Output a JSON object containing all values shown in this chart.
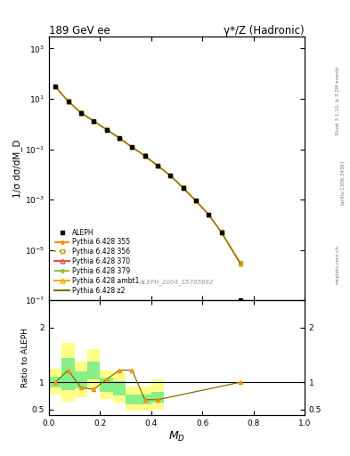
{
  "title_left": "189 GeV ee",
  "title_right": "γ*/Z (Hadronic)",
  "xlabel": "M_D",
  "ylabel_main": "1/σ dσ/dM_D",
  "ylabel_ratio": "Ratio to ALEPH",
  "watermark": "ALEPH_2004_S5765862",
  "rivet_text": "Rivet 3.1.10, ≥ 3.2M events",
  "arxiv_text": "[arXiv:1306.3436]",
  "mcplots_text": "mcplots.cern.ch",
  "data_x": [
    0.025,
    0.075,
    0.125,
    0.175,
    0.225,
    0.275,
    0.325,
    0.375,
    0.425,
    0.475,
    0.525,
    0.575,
    0.625,
    0.675,
    0.75
  ],
  "data_y": [
    30.0,
    8.0,
    2.8,
    1.3,
    0.6,
    0.28,
    0.12,
    0.055,
    0.022,
    0.009,
    0.003,
    0.0009,
    0.00025,
    5e-05,
    1e-07
  ],
  "mc_x": [
    0.025,
    0.075,
    0.125,
    0.175,
    0.225,
    0.275,
    0.325,
    0.375,
    0.425,
    0.475,
    0.525,
    0.575,
    0.625,
    0.675,
    0.75
  ],
  "mc355_y": [
    30.5,
    8.1,
    2.85,
    1.31,
    0.61,
    0.285,
    0.122,
    0.056,
    0.0225,
    0.0092,
    0.003,
    0.00091,
    0.000255,
    5.1e-05,
    3e-06
  ],
  "mc356_y": [
    30.6,
    8.15,
    2.86,
    1.315,
    0.612,
    0.287,
    0.123,
    0.057,
    0.0228,
    0.0093,
    0.0031,
    0.00092,
    0.000256,
    5.2e-05,
    3.1e-06
  ],
  "mc370_y": [
    30.3,
    8.05,
    2.82,
    1.305,
    0.605,
    0.282,
    0.121,
    0.055,
    0.0222,
    0.009,
    0.0029,
    0.00089,
    0.000252,
    5e-05,
    2.8e-06
  ],
  "mc379_y": [
    30.4,
    8.08,
    2.83,
    1.308,
    0.608,
    0.283,
    0.1215,
    0.0555,
    0.02225,
    0.00905,
    0.00295,
    0.000895,
    0.000253,
    5.05e-05,
    2.85e-06
  ],
  "mc_ambt1_y": [
    30.2,
    8.03,
    2.81,
    1.302,
    0.603,
    0.281,
    0.1205,
    0.0548,
    0.022,
    0.00895,
    0.00288,
    0.000885,
    0.00025,
    4.95e-05,
    2.75e-06
  ],
  "mc_z2_y": [
    30.1,
    8.0,
    2.8,
    1.3,
    0.6,
    0.28,
    0.1198,
    0.0545,
    0.0219,
    0.0089,
    0.00285,
    0.00088,
    0.000248,
    4.9e-05,
    2.7e-06
  ],
  "ratio_x": [
    0.025,
    0.075,
    0.125,
    0.175,
    0.225,
    0.275,
    0.325,
    0.375,
    0.425,
    0.75
  ],
  "ratio_y": [
    1.0,
    1.22,
    0.9,
    0.87,
    1.05,
    1.22,
    1.22,
    0.68,
    0.68,
    1.0
  ],
  "green_band_edges": [
    0.0,
    0.05,
    0.1,
    0.15,
    0.2,
    0.25,
    0.3,
    0.35,
    0.4,
    0.45
  ],
  "green_band_ylo": [
    0.9,
    0.85,
    0.88,
    1.05,
    0.82,
    0.75,
    0.6,
    0.6,
    0.62,
    0.62
  ],
  "green_band_yhi": [
    1.1,
    1.45,
    1.2,
    1.38,
    1.08,
    1.02,
    0.78,
    0.78,
    0.82,
    0.82
  ],
  "yellow_band_edges": [
    0.0,
    0.05,
    0.1,
    0.15,
    0.2,
    0.25,
    0.3,
    0.35,
    0.4,
    0.45
  ],
  "yellow_band_ylo": [
    0.78,
    0.65,
    0.72,
    0.88,
    0.7,
    0.62,
    0.48,
    0.48,
    0.5,
    0.5
  ],
  "yellow_band_yhi": [
    1.25,
    1.72,
    1.38,
    1.6,
    1.22,
    1.18,
    0.92,
    0.92,
    1.05,
    1.05
  ],
  "color_355": "#FF8C00",
  "color_356": "#C8A000",
  "color_370": "#E05050",
  "color_379": "#90C030",
  "color_ambt1": "#FFA500",
  "color_z2": "#807000",
  "ylim_main": [
    1e-07,
    3000
  ],
  "xlim": [
    0.0,
    1.0
  ],
  "ratio_ylim": [
    0.4,
    2.5
  ]
}
